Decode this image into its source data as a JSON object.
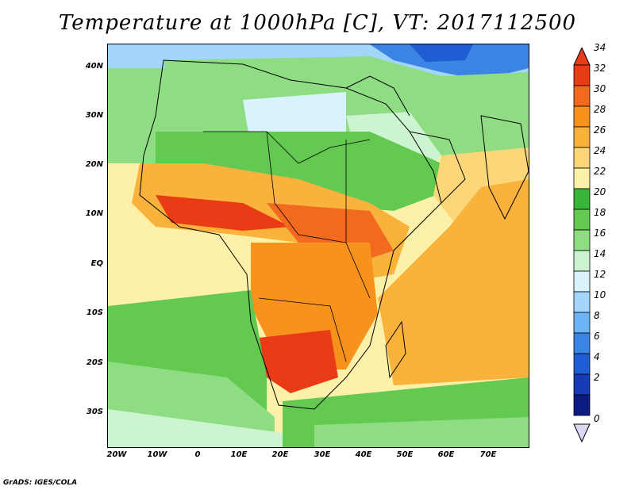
{
  "title": "Temperature at 1000hPa [C], VT: 2017112500",
  "credit": "GrADS: IGES/COLA",
  "axes": {
    "x_ticks": [
      "20W",
      "10W",
      "0",
      "10E",
      "20E",
      "30E",
      "40E",
      "50E",
      "60E",
      "70E"
    ],
    "y_ticks": [
      "40N",
      "30N",
      "20N",
      "10N",
      "EQ",
      "10S",
      "20S",
      "30S"
    ]
  },
  "colorbar": {
    "labels": [
      "34",
      "32",
      "30",
      "28",
      "26",
      "24",
      "22",
      "20",
      "18",
      "16",
      "14",
      "12",
      "10",
      "8",
      "6",
      "4",
      "2",
      "0"
    ],
    "colors": [
      "#e83b16",
      "#f26920",
      "#f7931d",
      "#f9b23b",
      "#fbd779",
      "#fdf0a8",
      "#39b53a",
      "#63c951",
      "#8fdd82",
      "#cdf4d0",
      "#d9f3fc",
      "#a4d5fb",
      "#6eb4f4",
      "#3c84e3",
      "#1e5dd2",
      "#173bb4",
      "#0c1b80"
    ]
  },
  "map": {
    "region": "Africa",
    "lon_range": [
      -22,
      80
    ],
    "lat_range": [
      -37,
      45
    ],
    "colors": {
      "ocean_north": "#39b53a",
      "ocean_south_cool": "#8fdd82",
      "ocean_tropical": "#fbd779",
      "indian_ocean": "#f9b23b",
      "sahara": "#8fdd82",
      "sahel_hot": "#e83b16",
      "congo_hot": "#f26920",
      "mediterranean_cool": "#6eb4f4",
      "high_lat_cold": "#1e5dd2"
    }
  }
}
